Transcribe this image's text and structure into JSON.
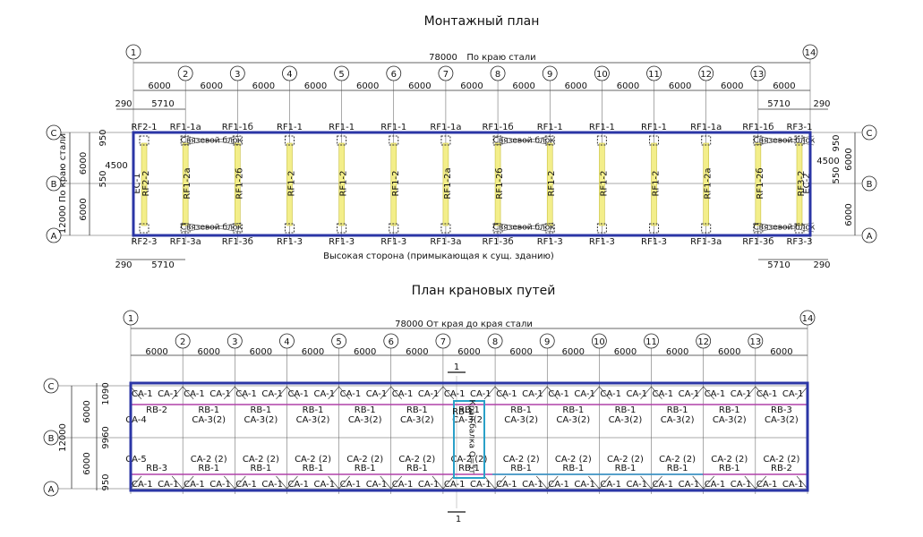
{
  "plan1": {
    "title": "Монтажный план",
    "overall": "78000",
    "overall_note": "По краю стали",
    "axes": [
      "1",
      "2",
      "3",
      "4",
      "5",
      "6",
      "7",
      "8",
      "9",
      "10",
      "11",
      "12",
      "13",
      "14"
    ],
    "rows": [
      "C",
      "B",
      "A"
    ],
    "spans": [
      "6000",
      "6000",
      "6000",
      "6000",
      "6000",
      "6000",
      "6000",
      "6000",
      "6000",
      "6000",
      "6000",
      "6000",
      "6000"
    ],
    "edge_small": "290",
    "edge_bay": "5710",
    "left_dims": [
      "950",
      "6000",
      "550",
      "4500",
      "6000"
    ],
    "left_outer": "12000 По краю стали",
    "right_dims": [
      "950",
      "6000",
      "4500",
      "550",
      "6000"
    ],
    "top_labels": [
      "RF2-1",
      "RF1-1a",
      "RF1-1б",
      "RF1-1",
      "RF1-1",
      "RF1-1",
      "RF1-1a",
      "RF1-1б",
      "RF1-1",
      "RF1-1",
      "RF1-1",
      "RF1-1a",
      "RF1-1б",
      "RF3-1"
    ],
    "frame_labels": [
      "RF2-2",
      "RF1-2a",
      "RF1-2б",
      "RF1-2",
      "RF1-2",
      "RF1-2",
      "RF1-2a",
      "RF1-2б",
      "RF1-2",
      "RF1-2",
      "RF1-2",
      "RF1-2a",
      "RF1-2б",
      "RF3-2"
    ],
    "bottom_labels": [
      "RF2-3",
      "RF1-3a",
      "RF1-3б",
      "RF1-3",
      "RF1-3",
      "RF1-3",
      "RF1-3a",
      "RF1-3б",
      "RF1-3",
      "RF1-3",
      "RF1-3",
      "RF1-3a",
      "RF1-3б",
      "RF3-3"
    ],
    "end_columns": [
      "EC-1",
      "EC-2"
    ],
    "bracing": [
      "Связевой блок",
      "Связевой блок",
      "Связевой блок",
      "Связевой блок",
      "Связевой блок",
      "Связевой блок"
    ],
    "note": "Высокая сторона (примыкающая к сущ. зданию)"
  },
  "plan2": {
    "title": "План крановых путей",
    "overall": "78000 От края до края стали",
    "axes": [
      "1",
      "2",
      "3",
      "4",
      "5",
      "6",
      "7",
      "8",
      "9",
      "10",
      "11",
      "12",
      "13",
      "14"
    ],
    "rows": [
      "C",
      "B",
      "A"
    ],
    "spans": [
      "6000",
      "6000",
      "6000",
      "6000",
      "6000",
      "6000",
      "6000",
      "6000",
      "6000",
      "6000",
      "6000",
      "6000",
      "6000"
    ],
    "left_dims": [
      "1090",
      "6000",
      "9960",
      "6000",
      "950"
    ],
    "left_outer": "12000",
    "section": "1",
    "ca_top": [
      "CA-1",
      "CA-1",
      "CA-1",
      "CA-1",
      "CA-1",
      "CA-1",
      "CA-1",
      "CA-1",
      "CA-1",
      "CA-1",
      "CA-1",
      "CA-1",
      "CA-1",
      "CA-1",
      "CA-1",
      "CA-1",
      "CA-1",
      "CA-1",
      "CA-1",
      "CA-1",
      "CA-1",
      "CA-1",
      "CA-1",
      "CA-1",
      "CA-1",
      "CA-1"
    ],
    "rb_top": [
      "RB-2",
      "RB-1",
      "RB-1",
      "RB-1",
      "RB-1",
      "RB-1",
      "RB-1",
      "RB-1",
      "RB-1",
      "RB-1",
      "RB-1",
      "RB-1",
      "RB-3"
    ],
    "ca_mid_top": [
      "CA-4",
      "CA-3(2)",
      "CA-3(2)",
      "CA-3(2)",
      "CA-3(2)",
      "CA-3(2)",
      "CA-3(2)",
      "CA-3(2)",
      "CA-3(2)",
      "CA-3(2)",
      "CA-3(2)",
      "CA-3(2)",
      "CA-3(2)"
    ],
    "ca_mid_bottom": [
      "CA-5",
      "CA-2 (2)",
      "CA-2 (2)",
      "CA-2 (2)",
      "CA-2 (2)",
      "CA-2 (2)",
      "CA-2 (2)",
      "CA-2 (2)",
      "CA-2 (2)",
      "CA-2 (2)",
      "CA-2 (2)",
      "CA-2 (2)",
      "CA-2 (2)"
    ],
    "rb_bottom": [
      "RB-3",
      "RB-1",
      "RB-1",
      "RB-1",
      "RB-1",
      "RB-1",
      "RB-1",
      "RB-1",
      "RB-1",
      "RB-1",
      "RB-1",
      "RB-1",
      "RB-2"
    ],
    "ca_bottom": [
      "CA-1",
      "CA-1",
      "CA-1",
      "CA-1",
      "CA-1",
      "CA-1",
      "CA-1",
      "CA-1",
      "CA-1",
      "CA-1",
      "CA-1",
      "CA-1",
      "CA-1",
      "CA-1",
      "CA-1",
      "CA-1",
      "CA-1",
      "CA-1",
      "CA-1",
      "CA-1",
      "CA-1",
      "CA-1",
      "CA-1",
      "CA-1",
      "CA-1",
      "CA-1"
    ],
    "crane": "Кран-балка Q=5т",
    "crane_beam": "RB-1"
  }
}
